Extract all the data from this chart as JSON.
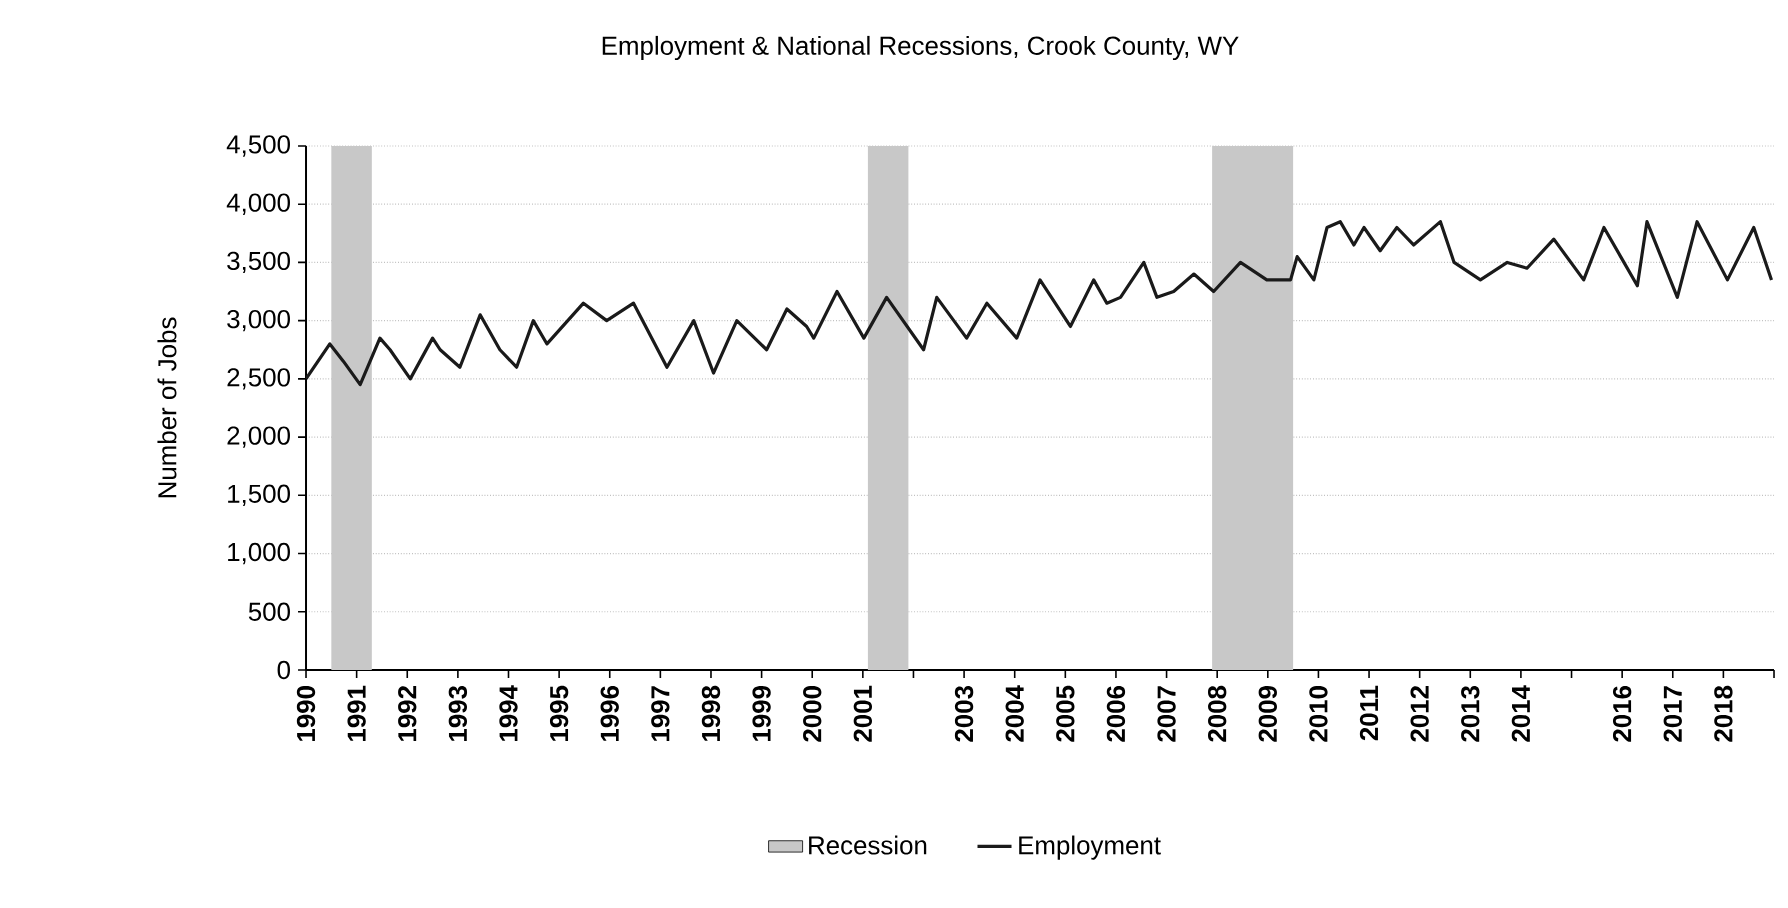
{
  "chart_data": {
    "type": "line",
    "title": "Employment & National Recessions, Crook County, WY",
    "ylabel": "Number of Jobs",
    "x": [
      1990.0,
      1990.47,
      1990.74,
      1991.07,
      1991.46,
      1991.66,
      1992.06,
      1992.5,
      1992.65,
      1993.04,
      1993.44,
      1993.83,
      1994.16,
      1994.49,
      1994.76,
      1995.48,
      1995.94,
      1996.47,
      1997.13,
      1997.66,
      1998.05,
      1998.51,
      1999.1,
      1999.5,
      1999.89,
      2000.03,
      2000.49,
      2001.02,
      2001.47,
      2002.2,
      2002.46,
      2003.05,
      2003.45,
      2004.04,
      2004.5,
      2005.1,
      2005.56,
      2005.82,
      2006.09,
      2006.55,
      2006.81,
      2007.14,
      2007.54,
      2007.93,
      2008.46,
      2008.98,
      2009.45,
      2009.58,
      2009.91,
      2010.17,
      2010.43,
      2010.7,
      2010.9,
      2011.22,
      2011.55,
      2011.88,
      2012.41,
      2012.68,
      2013.2,
      2013.73,
      2014.12,
      2014.65,
      2015.24,
      2015.64,
      2015.97,
      2016.3,
      2016.49,
      2017.09,
      2017.48,
      2018.08,
      2018.6,
      2018.95
    ],
    "series": [
      {
        "name": "Employment",
        "color": "#1a1a1a",
        "values": [
          2500,
          2800,
          2650,
          2450,
          2850,
          2750,
          2500,
          2850,
          2750,
          2600,
          3050,
          2750,
          2600,
          3000,
          2800,
          3150,
          3000,
          3150,
          2600,
          3000,
          2550,
          3000,
          2750,
          3100,
          2950,
          2850,
          3250,
          2850,
          3200,
          2750,
          3200,
          2850,
          3150,
          2850,
          3350,
          2950,
          3350,
          3150,
          3200,
          3500,
          3200,
          3250,
          3400,
          3250,
          3500,
          3350,
          3350,
          3550,
          3350,
          3800,
          3850,
          3650,
          3800,
          3600,
          3800,
          3650,
          3850,
          3500,
          3350,
          3500,
          3450,
          3700,
          3350,
          3800,
          3550,
          3300,
          3850,
          3200,
          3850,
          3350,
          3800,
          3350
        ]
      }
    ],
    "xlim": [
      1990,
      2019
    ],
    "xticks": [
      1990,
      1991,
      1992,
      1993,
      1994,
      1995,
      1996,
      1997,
      1998,
      1999,
      2000,
      2001,
      {
        "value": 2002,
        "label": null
      },
      2003,
      2004,
      2005,
      2006,
      2007,
      2008,
      2009,
      2010,
      2011,
      2012,
      2013,
      2014,
      {
        "value": 2015,
        "label": null
      },
      2016,
      2017,
      2018,
      {
        "value": 2019,
        "label": null
      }
    ],
    "ylim": [
      0,
      4500
    ],
    "yticks": [
      0,
      500,
      {
        "value": 1000,
        "label": "1,000"
      },
      {
        "value": 1500,
        "label": "1,500"
      },
      {
        "value": 2000,
        "label": "2,000"
      },
      {
        "value": 2500,
        "label": "2,500"
      },
      {
        "value": 3000,
        "label": "3,000"
      },
      {
        "value": 3500,
        "label": "3,500"
      },
      {
        "value": 4000,
        "label": "4,000"
      },
      {
        "value": 4500,
        "label": "4,500"
      }
    ],
    "bands": [
      {
        "axis": "x",
        "from": 1990.5,
        "to": 1991.3,
        "label": "Recession",
        "color": "#c8c8c8"
      },
      {
        "axis": "x",
        "from": 2001.1,
        "to": 2001.9,
        "color": "#c8c8c8"
      },
      {
        "axis": "x",
        "from": 2007.9,
        "to": 2009.5,
        "color": "#c8c8c8"
      }
    ],
    "grid": "y",
    "legend": "bottom",
    "marker": "none",
    "line_style": "solid"
  }
}
